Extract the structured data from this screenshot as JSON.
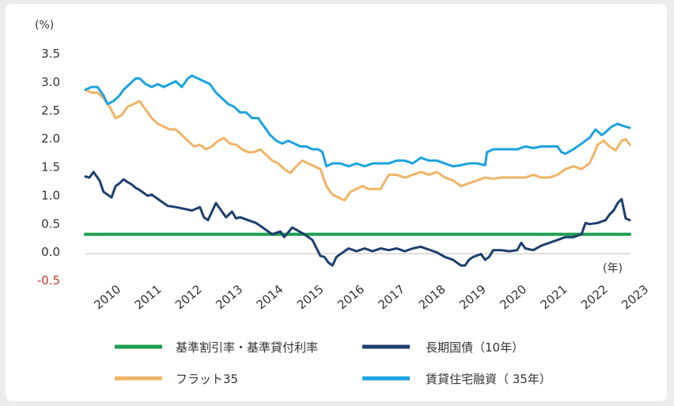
{
  "chart_data": {
    "type": "line",
    "unit_label": "(%)",
    "x_unit_label": "(年)",
    "ylim": [
      -0.5,
      3.5
    ],
    "yticks": [
      {
        "label": "3.5",
        "value": 3.5,
        "color": "#333333"
      },
      {
        "label": "3.0",
        "value": 3.0,
        "color": "#333333"
      },
      {
        "label": "2.5",
        "value": 2.5,
        "color": "#333333"
      },
      {
        "label": "2.0",
        "value": 2.0,
        "color": "#333333"
      },
      {
        "label": "1.5",
        "value": 1.5,
        "color": "#333333"
      },
      {
        "label": "1.0",
        "value": 1.0,
        "color": "#333333"
      },
      {
        "label": "0.5",
        "value": 0.5,
        "color": "#333333"
      },
      {
        "label": "0.0",
        "value": 0.0,
        "color": "#333333"
      },
      {
        "label": "-0.5",
        "value": -0.5,
        "color": "#c0392b"
      }
    ],
    "xlim": [
      2009.65,
      2023.2
    ],
    "xticks": [
      "2010",
      "2011",
      "2012",
      "2013",
      "2014",
      "2015",
      "2016",
      "2017",
      "2018",
      "2019",
      "2020",
      "2021",
      "2022",
      "2023"
    ],
    "grid": false,
    "legend_position": "bottom",
    "series": [
      {
        "name": "基準割引率・基準貸付利率",
        "color": "#1e9e50",
        "x": [
          2009.65,
          2023.2
        ],
        "y": [
          0.3,
          0.3
        ]
      },
      {
        "name": "長期国債（10年）",
        "color": "#1d3f6e",
        "x": [
          2009.65,
          2009.75,
          2009.85,
          2010.0,
          2010.1,
          2010.2,
          2010.3,
          2010.4,
          2010.5,
          2010.6,
          2010.7,
          2010.8,
          2010.9,
          2011.0,
          2011.2,
          2011.3,
          2011.5,
          2011.7,
          2011.9,
          2012.1,
          2012.3,
          2012.5,
          2012.6,
          2012.7,
          2012.9,
          2013.0,
          2013.15,
          2013.3,
          2013.4,
          2013.5,
          2013.7,
          2013.9,
          2014.1,
          2014.3,
          2014.5,
          2014.6,
          2014.8,
          2014.9,
          2015.1,
          2015.3,
          2015.5,
          2015.6,
          2015.7,
          2015.8,
          2015.9,
          2016.0,
          2016.2,
          2016.4,
          2016.6,
          2016.8,
          2017.0,
          2017.2,
          2017.4,
          2017.6,
          2017.8,
          2018.0,
          2018.2,
          2018.4,
          2018.6,
          2018.8,
          2019.0,
          2019.1,
          2019.2,
          2019.3,
          2019.5,
          2019.6,
          2019.7,
          2019.8,
          2020.0,
          2020.2,
          2020.4,
          2020.5,
          2020.6,
          2020.8,
          2021.0,
          2021.2,
          2021.4,
          2021.6,
          2021.8,
          2022.0,
          2022.1,
          2022.2,
          2022.4,
          2022.6,
          2022.7,
          2022.8,
          2022.9,
          2023.0,
          2023.1,
          2023.2
        ],
        "y": [
          1.32,
          1.3,
          1.4,
          1.25,
          1.05,
          1.0,
          0.95,
          1.15,
          1.2,
          1.27,
          1.22,
          1.18,
          1.12,
          1.08,
          0.98,
          1.0,
          0.9,
          0.8,
          0.78,
          0.75,
          0.72,
          0.78,
          0.6,
          0.55,
          0.85,
          0.75,
          0.6,
          0.7,
          0.58,
          0.6,
          0.55,
          0.5,
          0.4,
          0.3,
          0.35,
          0.25,
          0.42,
          0.38,
          0.3,
          0.2,
          -0.08,
          -0.1,
          -0.2,
          -0.25,
          -0.1,
          -0.05,
          0.05,
          0.0,
          0.05,
          0.0,
          0.05,
          0.02,
          0.05,
          0.0,
          0.05,
          0.08,
          0.03,
          -0.02,
          -0.1,
          -0.15,
          -0.25,
          -0.25,
          -0.15,
          -0.1,
          -0.05,
          -0.15,
          -0.1,
          0.02,
          0.02,
          0.0,
          0.02,
          0.15,
          0.05,
          0.02,
          0.1,
          0.15,
          0.2,
          0.25,
          0.25,
          0.3,
          0.5,
          0.48,
          0.5,
          0.55,
          0.65,
          0.72,
          0.85,
          0.92,
          0.58,
          0.55
        ]
      },
      {
        "name": "フラット35",
        "color": "#f0b467",
        "x": [
          2009.65,
          2009.8,
          2009.95,
          2010.1,
          2010.25,
          2010.4,
          2010.55,
          2010.7,
          2010.85,
          2011.0,
          2011.15,
          2011.3,
          2011.45,
          2011.6,
          2011.75,
          2011.9,
          2012.05,
          2012.2,
          2012.35,
          2012.5,
          2012.65,
          2012.8,
          2012.95,
          2013.1,
          2013.25,
          2013.4,
          2013.55,
          2013.7,
          2013.85,
          2014.0,
          2014.15,
          2014.3,
          2014.45,
          2014.6,
          2014.75,
          2014.9,
          2015.05,
          2015.2,
          2015.35,
          2015.5,
          2015.65,
          2015.8,
          2015.95,
          2016.1,
          2016.25,
          2016.4,
          2016.55,
          2016.7,
          2016.85,
          2017.0,
          2017.2,
          2017.4,
          2017.6,
          2017.8,
          2018.0,
          2018.2,
          2018.4,
          2018.6,
          2018.8,
          2019.0,
          2019.2,
          2019.4,
          2019.6,
          2019.8,
          2020.0,
          2020.2,
          2020.4,
          2020.6,
          2020.8,
          2021.0,
          2021.2,
          2021.4,
          2021.6,
          2021.8,
          2022.0,
          2022.1,
          2022.2,
          2022.3,
          2022.4,
          2022.55,
          2022.7,
          2022.85,
          2023.0,
          2023.1,
          2023.2
        ],
        "y": [
          2.85,
          2.8,
          2.8,
          2.7,
          2.55,
          2.35,
          2.4,
          2.55,
          2.6,
          2.65,
          2.5,
          2.35,
          2.25,
          2.2,
          2.15,
          2.15,
          2.05,
          1.95,
          1.85,
          1.88,
          1.8,
          1.85,
          1.95,
          2.0,
          1.9,
          1.88,
          1.8,
          1.75,
          1.75,
          1.8,
          1.7,
          1.6,
          1.55,
          1.45,
          1.38,
          1.5,
          1.6,
          1.55,
          1.5,
          1.45,
          1.15,
          1.0,
          0.95,
          0.9,
          1.05,
          1.1,
          1.15,
          1.1,
          1.1,
          1.1,
          1.35,
          1.35,
          1.3,
          1.35,
          1.4,
          1.35,
          1.4,
          1.3,
          1.25,
          1.15,
          1.2,
          1.25,
          1.3,
          1.28,
          1.3,
          1.3,
          1.3,
          1.3,
          1.35,
          1.3,
          1.3,
          1.35,
          1.45,
          1.5,
          1.45,
          1.5,
          1.55,
          1.7,
          1.88,
          1.95,
          1.85,
          1.78,
          1.95,
          1.98,
          1.88
        ]
      },
      {
        "name": "賃貸住宅融資（ 35年）",
        "color": "#1aa3e0",
        "x": [
          2009.65,
          2009.8,
          2009.95,
          2010.1,
          2010.2,
          2010.35,
          2010.5,
          2010.6,
          2010.75,
          2010.9,
          2011.0,
          2011.15,
          2011.3,
          2011.45,
          2011.6,
          2011.75,
          2011.9,
          2012.05,
          2012.2,
          2012.3,
          2012.45,
          2012.6,
          2012.75,
          2012.9,
          2013.05,
          2013.2,
          2013.35,
          2013.5,
          2013.65,
          2013.8,
          2013.95,
          2014.1,
          2014.25,
          2014.4,
          2014.55,
          2014.7,
          2014.85,
          2015.0,
          2015.15,
          2015.3,
          2015.45,
          2015.55,
          2015.65,
          2015.8,
          2016.0,
          2016.2,
          2016.4,
          2016.6,
          2016.8,
          2017.0,
          2017.2,
          2017.4,
          2017.6,
          2017.8,
          2018.0,
          2018.2,
          2018.4,
          2018.6,
          2018.8,
          2019.0,
          2019.2,
          2019.4,
          2019.6,
          2019.65,
          2019.8,
          2020.0,
          2020.2,
          2020.4,
          2020.6,
          2020.8,
          2021.0,
          2021.2,
          2021.4,
          2021.5,
          2021.6,
          2021.8,
          2022.0,
          2022.1,
          2022.2,
          2022.35,
          2022.5,
          2022.6,
          2022.75,
          2022.9,
          2023.0,
          2023.1,
          2023.2
        ],
        "y": [
          2.85,
          2.9,
          2.9,
          2.75,
          2.6,
          2.65,
          2.75,
          2.85,
          2.95,
          3.05,
          3.05,
          2.95,
          2.9,
          2.95,
          2.9,
          2.95,
          3.0,
          2.9,
          3.05,
          3.1,
          3.05,
          3.0,
          2.95,
          2.8,
          2.7,
          2.6,
          2.55,
          2.45,
          2.45,
          2.35,
          2.35,
          2.2,
          2.05,
          1.95,
          1.9,
          1.95,
          1.9,
          1.85,
          1.85,
          1.8,
          1.8,
          1.75,
          1.5,
          1.55,
          1.55,
          1.5,
          1.55,
          1.5,
          1.55,
          1.55,
          1.55,
          1.6,
          1.6,
          1.55,
          1.65,
          1.6,
          1.6,
          1.55,
          1.5,
          1.52,
          1.55,
          1.55,
          1.52,
          1.75,
          1.8,
          1.8,
          1.8,
          1.8,
          1.85,
          1.82,
          1.85,
          1.85,
          1.85,
          1.75,
          1.72,
          1.8,
          1.9,
          1.95,
          2.0,
          2.15,
          2.05,
          2.1,
          2.2,
          2.25,
          2.22,
          2.2,
          2.18
        ]
      }
    ]
  }
}
